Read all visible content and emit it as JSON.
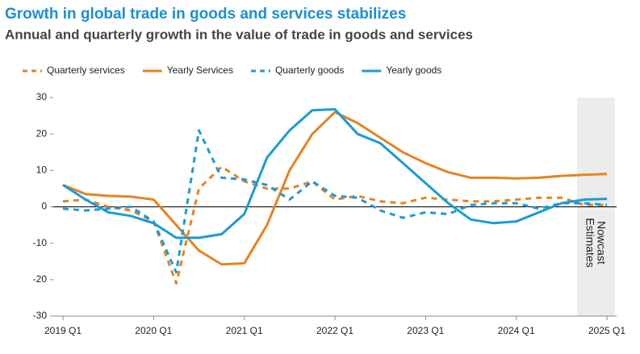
{
  "chart_data": {
    "type": "line",
    "title": "Growth in global trade in goods and services stabilizes",
    "subtitle": "Annual and quarterly growth in the value of trade in goods and services",
    "categories": [
      "2019 Q1",
      null,
      null,
      null,
      "2020 Q1",
      null,
      null,
      null,
      "2021 Q1",
      null,
      null,
      null,
      "2022 Q1",
      null,
      null,
      null,
      "2023 Q1",
      null,
      null,
      null,
      "2024 Q1",
      null,
      null,
      null,
      "2025 Q1"
    ],
    "series": [
      {
        "name": "Quarterly services",
        "color": "#e8821e",
        "dashed": true,
        "values": [
          1.5,
          2,
          0,
          -1,
          -4,
          -21,
          5,
          11,
          7,
          5,
          5,
          7,
          2,
          3,
          1.5,
          1,
          2.5,
          2,
          1.5,
          1.5,
          2,
          2.5,
          2.5,
          0.5,
          0.5
        ]
      },
      {
        "name": "Yearly Services",
        "color": "#e8821e",
        "dashed": false,
        "values": [
          6,
          3.5,
          3,
          2.8,
          2,
          -5,
          -12,
          -15.8,
          -15.5,
          -5,
          10,
          20,
          26,
          23,
          19,
          15,
          12,
          9.5,
          8,
          8,
          7.8,
          8,
          8.5,
          8.8,
          9
        ]
      },
      {
        "name": "Quarterly goods",
        "color": "#1b9bd7",
        "dashed": true,
        "values": [
          -0.5,
          -1,
          -0.5,
          0,
          -4,
          -18,
          21,
          8,
          7.5,
          6,
          2,
          7,
          3,
          2.5,
          -1,
          -3,
          -1.5,
          -2,
          0.5,
          1,
          1,
          -0.5,
          1,
          1,
          0.5
        ]
      },
      {
        "name": "Yearly goods",
        "color": "#1b9bd7",
        "dashed": false,
        "values": [
          6,
          2,
          -1.5,
          -2.5,
          -4.5,
          -8.5,
          -8.5,
          -7.5,
          -2,
          13.5,
          21,
          26.5,
          26.8,
          20,
          17.5,
          12,
          6.5,
          1,
          -3.5,
          -4.5,
          -4,
          -1.5,
          1,
          2,
          2.2
        ]
      }
    ],
    "ylim": [
      -30,
      30
    ],
    "yticks": [
      -30,
      -20,
      -10,
      0,
      10,
      20,
      30
    ],
    "grid": false,
    "legend": "top",
    "annotations": [
      "Nowcast",
      "Estimates"
    ]
  }
}
